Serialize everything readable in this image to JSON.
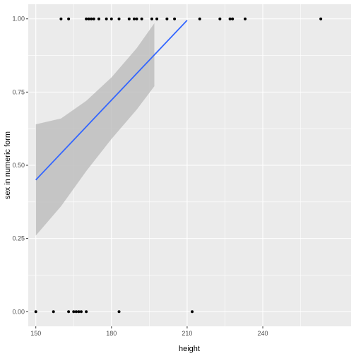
{
  "chart_data": {
    "type": "scatter",
    "xlabel": "height",
    "ylabel": "sex in numeric form",
    "xlim": [
      147,
      275
    ],
    "ylim": [
      -0.05,
      1.05
    ],
    "x_ticks": [
      150,
      180,
      210,
      240
    ],
    "x_tick_labels": [
      "150",
      "180",
      "210",
      "240"
    ],
    "y_ticks": [
      0,
      0.25,
      0.5,
      0.75,
      1
    ],
    "y_tick_labels": [
      "0.00",
      "0.25",
      "0.50",
      "0.75",
      "1.00"
    ],
    "grid": true,
    "points": [
      {
        "x": 150,
        "y": 0
      },
      {
        "x": 157,
        "y": 0
      },
      {
        "x": 163,
        "y": 0
      },
      {
        "x": 165,
        "y": 0
      },
      {
        "x": 166,
        "y": 0
      },
      {
        "x": 167,
        "y": 0
      },
      {
        "x": 168,
        "y": 0
      },
      {
        "x": 170,
        "y": 0
      },
      {
        "x": 183,
        "y": 0
      },
      {
        "x": 212,
        "y": 0
      },
      {
        "x": 160,
        "y": 1
      },
      {
        "x": 163,
        "y": 1
      },
      {
        "x": 170,
        "y": 1
      },
      {
        "x": 171,
        "y": 1
      },
      {
        "x": 172,
        "y": 1
      },
      {
        "x": 173,
        "y": 1
      },
      {
        "x": 175,
        "y": 1
      },
      {
        "x": 178,
        "y": 1
      },
      {
        "x": 180,
        "y": 1
      },
      {
        "x": 183,
        "y": 1
      },
      {
        "x": 187,
        "y": 1
      },
      {
        "x": 189,
        "y": 1
      },
      {
        "x": 190,
        "y": 1
      },
      {
        "x": 192,
        "y": 1
      },
      {
        "x": 196,
        "y": 1
      },
      {
        "x": 198,
        "y": 1
      },
      {
        "x": 202,
        "y": 1
      },
      {
        "x": 205,
        "y": 1
      },
      {
        "x": 215,
        "y": 1
      },
      {
        "x": 223,
        "y": 1
      },
      {
        "x": 227,
        "y": 1
      },
      {
        "x": 228,
        "y": 1
      },
      {
        "x": 233,
        "y": 1
      },
      {
        "x": 263,
        "y": 1
      }
    ],
    "fit_line": {
      "x": [
        150,
        210
      ],
      "y": [
        0.45,
        0.995
      ],
      "color": "#3366FF"
    },
    "confidence_band": {
      "x": [
        150,
        160,
        170,
        180,
        190,
        197
      ],
      "lower": [
        0.26,
        0.36,
        0.48,
        0.59,
        0.69,
        0.77
      ],
      "upper": [
        0.64,
        0.66,
        0.72,
        0.8,
        0.9,
        0.985
      ],
      "color": "#999999"
    },
    "colors": {
      "panel_background": "#EBEBEB",
      "grid_major": "#FFFFFF",
      "point": "#000000",
      "line": "#3366FF",
      "band": "#BEBEBE"
    }
  }
}
